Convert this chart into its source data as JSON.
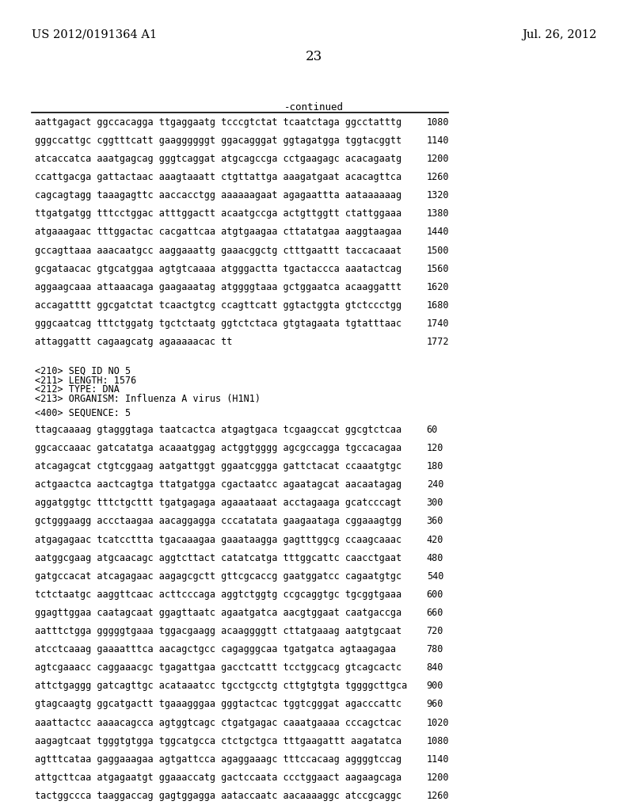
{
  "header_left": "US 2012/0191364 A1",
  "header_right": "Jul. 26, 2012",
  "page_number": "23",
  "continued_label": "-continued",
  "background_color": "#ffffff",
  "text_color": "#000000",
  "continued_section": [
    {
      "seq": "aattgagact ggccacagga ttgaggaatg tcccgtctat tcaatctaga ggcctatttg",
      "num": "1080"
    },
    {
      "seq": "gggccattgc cggtttcatt gaaggggggt ggacagggat ggtagatgga tggtacggtt",
      "num": "1140"
    },
    {
      "seq": "atcaccatca aaatgagcag gggtcaggat atgcagccga cctgaagagc acacagaatg",
      "num": "1200"
    },
    {
      "seq": "ccattgacga gattactaac aaagtaaatt ctgttattga aaagatgaat acacagttca",
      "num": "1260"
    },
    {
      "seq": "cagcagtagg taaagagttc aaccacctgg aaaaaagaat agagaattta aataaaaaag",
      "num": "1320"
    },
    {
      "seq": "ttgatgatgg tttcctggac atttggactt acaatgccga actgttggtt ctattggaaa",
      "num": "1380"
    },
    {
      "seq": "atgaaagaac tttggactac cacgattcaa atgtgaagaa cttatatgaa aaggtaagaa",
      "num": "1440"
    },
    {
      "seq": "gccagttaaa aaacaatgcc aaggaaattg gaaacggctg ctttgaattt taccacaaat",
      "num": "1500"
    },
    {
      "seq": "gcgataacac gtgcatggaa agtgtcaaaa atgggactta tgactaccca aaatactcag",
      "num": "1560"
    },
    {
      "seq": "aggaagcaaa attaaacaga gaagaaatag atggggtaaa gctggaatca acaaggattt",
      "num": "1620"
    },
    {
      "seq": "accagatttt ggcgatctat tcaactgtcg ccagttcatt ggtactggta gtctccctgg",
      "num": "1680"
    },
    {
      "seq": "gggcaatcag tttctggatg tgctctaatg ggtctctaca gtgtagaata tgtatttaac",
      "num": "1740"
    },
    {
      "seq": "attaggattt cagaagcatg agaaaaacac tt",
      "num": "1772"
    }
  ],
  "seq_info": [
    "<210> SEQ ID NO 5",
    "<211> LENGTH: 1576",
    "<212> TYPE: DNA",
    "<213> ORGANISM: Influenza A virus (H1N1)"
  ],
  "seq400_label": "<400> SEQUENCE: 5",
  "sequence5": [
    {
      "seq": "ttagcaaaag gtagggtaga taatcactca atgagtgaca tcgaagccat ggcgtctcaa",
      "num": "60"
    },
    {
      "seq": "ggcaccaaac gatcatatga acaaatggag actggtgggg agcgccagga tgccacagaa",
      "num": "120"
    },
    {
      "seq": "atcagagcat ctgtcggaag aatgattggt ggaatcggga gattctacat ccaaatgtgc",
      "num": "180"
    },
    {
      "seq": "actgaactca aactcagtga ttatgatgga cgactaatcc agaatagcat aacaatagag",
      "num": "240"
    },
    {
      "seq": "aggatggtgc tttctgcttt tgatgagaga agaaataaat acctagaaga gcatcccagt",
      "num": "300"
    },
    {
      "seq": "gctgggaagg accctaagaa aacaggagga cccatatata gaagaataga cggaaagtgg",
      "num": "360"
    },
    {
      "seq": "atgagagaac tcatccttta tgacaaagaa gaaataagga gagtttggcg ccaagcaaac",
      "num": "420"
    },
    {
      "seq": "aatggcgaag atgcaacagc aggtcttact catatcatga tttggcattc caacctgaat",
      "num": "480"
    },
    {
      "seq": "gatgccacat atcagagaac aagagcgctt gttcgcaccg gaatggatcc cagaatgtgc",
      "num": "540"
    },
    {
      "seq": "tctctaatgc aaggttcaac acttcccaga aggtctggtg ccgcaggtgc tgcggtgaaa",
      "num": "600"
    },
    {
      "seq": "ggagttggaa caatagcaat ggagttaatc agaatgatca aacgtggaat caatgaccga",
      "num": "660"
    },
    {
      "seq": "aatttctgga gggggtgaaa tggacgaagg acaaggggtt cttatgaaag aatgtgcaat",
      "num": "720"
    },
    {
      "seq": "atcctcaaag gaaaatttca aacagctgcc cagagggcaa tgatgatca agtaagagaa",
      "num": "780"
    },
    {
      "seq": "agtcgaaacc caggaaacgc tgagattgaa gacctcattt tcctggcacg gtcagcactc",
      "num": "840"
    },
    {
      "seq": "attctgaggg gatcagttgc acataaatcc tgcctgcctg cttgtgtgta tggggcttgca",
      "num": "900"
    },
    {
      "seq": "gtagcaagtg ggcatgactt tgaaagggaa gggtactcac tggtcgggat agacccattc",
      "num": "960"
    },
    {
      "seq": "aaattactcc aaaacagcca agtggtcagc ctgatgagac caaatgaaaa cccagctcac",
      "num": "1020"
    },
    {
      "seq": "aagagtcaat tgggtgtgga tggcatgcca ctctgctgca tttgaagattt aagatatca",
      "num": "1080"
    },
    {
      "seq": "agtttcataa gaggaaagaa agtgattcca agaggaaagc tttccacaag aggggtccag",
      "num": "1140"
    },
    {
      "seq": "attgcttcaa atgagaatgt ggaaaccatg gactccaata ccctggaact aagaagcaga",
      "num": "1200"
    },
    {
      "seq": "tactggccca taaggaccag gagtggagga aataccaatc aacaaaaggc atccgcaggc",
      "num": "1260"
    }
  ]
}
